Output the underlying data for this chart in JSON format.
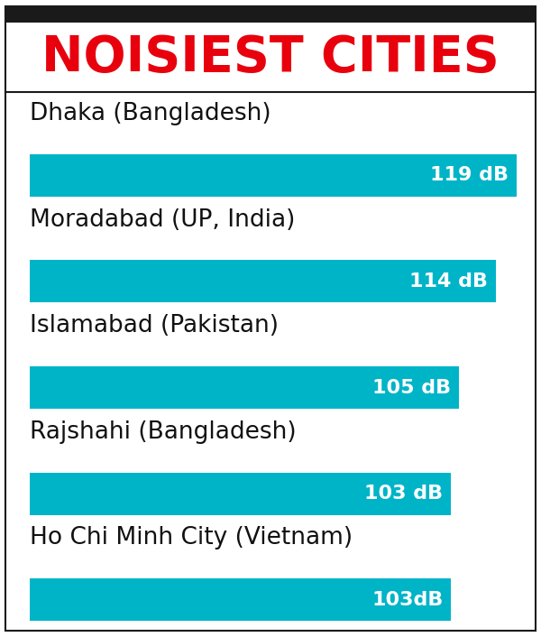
{
  "title": "NOISIEST CITIES",
  "title_color": "#e8000d",
  "bar_color": "#00b4c8",
  "bg_color": "#ffffff",
  "border_color": "#1a1a1a",
  "top_bar_color": "#1a1a1a",
  "cities": [
    "Dhaka (Bangladesh)",
    "Moradabad (UP, India)",
    "Islamabad (Pakistan)",
    "Rajshahi (Bangladesh)",
    "Ho Chi Minh City (Vietnam)"
  ],
  "values": [
    119,
    114,
    105,
    103,
    103
  ],
  "labels": [
    "119 dB",
    "114 dB",
    "105 dB",
    "103 dB",
    "103dB"
  ],
  "max_val": 119,
  "city_fontsize": 19,
  "label_fontsize": 16,
  "title_fontsize": 40
}
